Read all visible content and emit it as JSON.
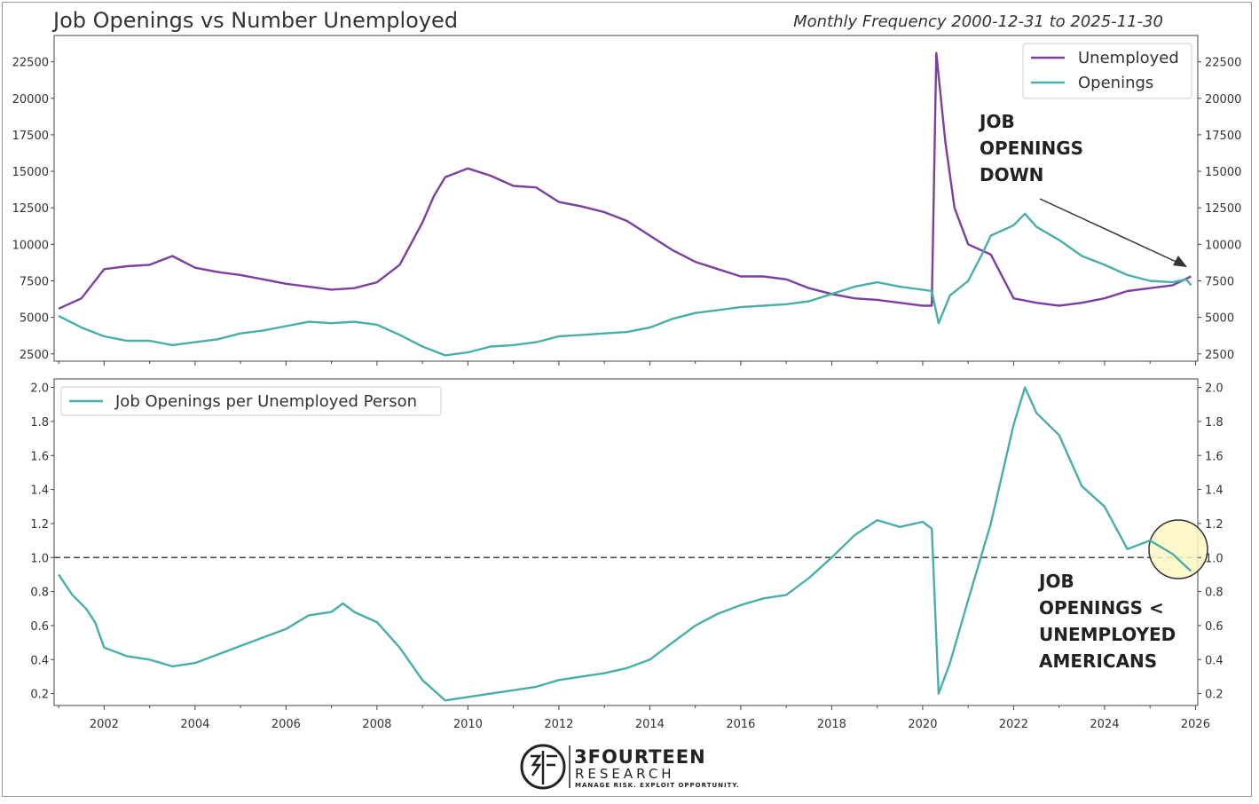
{
  "chart_title": "Job Openings vs Number Unemployed",
  "chart_subtitle": "Monthly Frequency 2000-12-31 to 2025-11-30",
  "colors": {
    "unemployed": "#7b3f9e",
    "openings": "#4aaea8",
    "ratio": "#4aaea8",
    "reference_line": "#444444",
    "highlight_fill": "#fbf7c2",
    "highlight_stroke": "#333333"
  },
  "chart_data": [
    {
      "type": "line",
      "title": "",
      "xlabel": "",
      "ylabel": "",
      "xlim": [
        2000.9,
        2026.05
      ],
      "ylim": [
        2000,
        24300
      ],
      "x_ticks": [
        "2002",
        "2004",
        "2006",
        "2008",
        "2010",
        "2012",
        "2014",
        "2016",
        "2018",
        "2020",
        "2022",
        "2024",
        "2026"
      ],
      "y_ticks": [
        "2500",
        "5000",
        "7500",
        "10000",
        "12500",
        "15000",
        "17500",
        "20000",
        "22500"
      ],
      "grid": false,
      "legend_position": "top-right",
      "series": [
        {
          "name": "Unemployed",
          "points": [
            [
              2001.0,
              5600
            ],
            [
              2001.5,
              6300
            ],
            [
              2002.0,
              8300
            ],
            [
              2002.5,
              8500
            ],
            [
              2003.0,
              8600
            ],
            [
              2003.5,
              9200
            ],
            [
              2004.0,
              8400
            ],
            [
              2004.5,
              8100
            ],
            [
              2005.0,
              7900
            ],
            [
              2005.5,
              7600
            ],
            [
              2006.0,
              7300
            ],
            [
              2006.5,
              7100
            ],
            [
              2007.0,
              6900
            ],
            [
              2007.5,
              7000
            ],
            [
              2008.0,
              7400
            ],
            [
              2008.5,
              8600
            ],
            [
              2009.0,
              11500
            ],
            [
              2009.25,
              13300
            ],
            [
              2009.5,
              14600
            ],
            [
              2010.0,
              15200
            ],
            [
              2010.5,
              14700
            ],
            [
              2011.0,
              14000
            ],
            [
              2011.5,
              13900
            ],
            [
              2012.0,
              12900
            ],
            [
              2012.5,
              12600
            ],
            [
              2013.0,
              12200
            ],
            [
              2013.5,
              11600
            ],
            [
              2014.0,
              10600
            ],
            [
              2014.5,
              9600
            ],
            [
              2015.0,
              8800
            ],
            [
              2015.5,
              8300
            ],
            [
              2016.0,
              7800
            ],
            [
              2016.5,
              7800
            ],
            [
              2017.0,
              7600
            ],
            [
              2017.5,
              7000
            ],
            [
              2018.0,
              6600
            ],
            [
              2018.5,
              6300
            ],
            [
              2019.0,
              6200
            ],
            [
              2019.5,
              6000
            ],
            [
              2020.0,
              5800
            ],
            [
              2020.2,
              5800
            ],
            [
              2020.3,
              23100
            ],
            [
              2020.5,
              17000
            ],
            [
              2020.7,
              12500
            ],
            [
              2021.0,
              10000
            ],
            [
              2021.5,
              9300
            ],
            [
              2022.0,
              6300
            ],
            [
              2022.5,
              6000
            ],
            [
              2023.0,
              5800
            ],
            [
              2023.5,
              6000
            ],
            [
              2024.0,
              6300
            ],
            [
              2024.5,
              6800
            ],
            [
              2025.0,
              7000
            ],
            [
              2025.5,
              7200
            ],
            [
              2025.9,
              7800
            ]
          ]
        },
        {
          "name": "Openings",
          "points": [
            [
              2001.0,
              5100
            ],
            [
              2001.5,
              4300
            ],
            [
              2002.0,
              3700
            ],
            [
              2002.5,
              3400
            ],
            [
              2003.0,
              3400
            ],
            [
              2003.5,
              3100
            ],
            [
              2004.0,
              3300
            ],
            [
              2004.5,
              3500
            ],
            [
              2005.0,
              3900
            ],
            [
              2005.5,
              4100
            ],
            [
              2006.0,
              4400
            ],
            [
              2006.5,
              4700
            ],
            [
              2007.0,
              4600
            ],
            [
              2007.5,
              4700
            ],
            [
              2008.0,
              4500
            ],
            [
              2008.5,
              3800
            ],
            [
              2009.0,
              3000
            ],
            [
              2009.5,
              2400
            ],
            [
              2010.0,
              2600
            ],
            [
              2010.5,
              3000
            ],
            [
              2011.0,
              3100
            ],
            [
              2011.5,
              3300
            ],
            [
              2012.0,
              3700
            ],
            [
              2012.5,
              3800
            ],
            [
              2013.0,
              3900
            ],
            [
              2013.5,
              4000
            ],
            [
              2014.0,
              4300
            ],
            [
              2014.5,
              4900
            ],
            [
              2015.0,
              5300
            ],
            [
              2015.5,
              5500
            ],
            [
              2016.0,
              5700
            ],
            [
              2016.5,
              5800
            ],
            [
              2017.0,
              5900
            ],
            [
              2017.5,
              6100
            ],
            [
              2018.0,
              6600
            ],
            [
              2018.5,
              7100
            ],
            [
              2019.0,
              7400
            ],
            [
              2019.5,
              7100
            ],
            [
              2020.0,
              6900
            ],
            [
              2020.2,
              6800
            ],
            [
              2020.35,
              4600
            ],
            [
              2020.6,
              6500
            ],
            [
              2021.0,
              7500
            ],
            [
              2021.3,
              9300
            ],
            [
              2021.5,
              10600
            ],
            [
              2022.0,
              11300
            ],
            [
              2022.25,
              12100
            ],
            [
              2022.5,
              11200
            ],
            [
              2023.0,
              10300
            ],
            [
              2023.5,
              9200
            ],
            [
              2024.0,
              8600
            ],
            [
              2024.5,
              7900
            ],
            [
              2025.0,
              7500
            ],
            [
              2025.5,
              7400
            ],
            [
              2025.8,
              7600
            ],
            [
              2025.9,
              7200
            ]
          ]
        }
      ]
    },
    {
      "type": "line",
      "title": "",
      "xlabel": "",
      "ylabel": "",
      "xlim": [
        2000.9,
        2026.05
      ],
      "ylim": [
        0.13,
        2.05
      ],
      "x_ticks": [
        "2002",
        "2004",
        "2006",
        "2008",
        "2010",
        "2012",
        "2014",
        "2016",
        "2018",
        "2020",
        "2022",
        "2024",
        "2026"
      ],
      "y_ticks": [
        "0.2",
        "0.4",
        "0.6",
        "0.8",
        "1.0",
        "1.2",
        "1.4",
        "1.6",
        "1.8",
        "2.0"
      ],
      "grid": false,
      "legend_position": "top-left",
      "reference_line": {
        "y": 1.0,
        "style": "dashed"
      },
      "series": [
        {
          "name": "Job Openings per Unemployed Person",
          "points": [
            [
              2001.0,
              0.9
            ],
            [
              2001.3,
              0.78
            ],
            [
              2001.6,
              0.7
            ],
            [
              2001.8,
              0.62
            ],
            [
              2002.0,
              0.47
            ],
            [
              2002.5,
              0.42
            ],
            [
              2003.0,
              0.4
            ],
            [
              2003.5,
              0.36
            ],
            [
              2004.0,
              0.38
            ],
            [
              2004.5,
              0.43
            ],
            [
              2005.0,
              0.48
            ],
            [
              2005.5,
              0.53
            ],
            [
              2006.0,
              0.58
            ],
            [
              2006.5,
              0.66
            ],
            [
              2007.0,
              0.68
            ],
            [
              2007.25,
              0.73
            ],
            [
              2007.5,
              0.68
            ],
            [
              2008.0,
              0.62
            ],
            [
              2008.5,
              0.47
            ],
            [
              2009.0,
              0.28
            ],
            [
              2009.5,
              0.16
            ],
            [
              2010.0,
              0.18
            ],
            [
              2010.5,
              0.2
            ],
            [
              2011.0,
              0.22
            ],
            [
              2011.5,
              0.24
            ],
            [
              2012.0,
              0.28
            ],
            [
              2012.5,
              0.3
            ],
            [
              2013.0,
              0.32
            ],
            [
              2013.5,
              0.35
            ],
            [
              2014.0,
              0.4
            ],
            [
              2014.5,
              0.5
            ],
            [
              2015.0,
              0.6
            ],
            [
              2015.5,
              0.67
            ],
            [
              2016.0,
              0.72
            ],
            [
              2016.5,
              0.76
            ],
            [
              2017.0,
              0.78
            ],
            [
              2017.5,
              0.88
            ],
            [
              2018.0,
              1.0
            ],
            [
              2018.5,
              1.13
            ],
            [
              2019.0,
              1.22
            ],
            [
              2019.5,
              1.18
            ],
            [
              2020.0,
              1.21
            ],
            [
              2020.2,
              1.17
            ],
            [
              2020.35,
              0.2
            ],
            [
              2020.6,
              0.38
            ],
            [
              2021.0,
              0.75
            ],
            [
              2021.5,
              1.2
            ],
            [
              2022.0,
              1.78
            ],
            [
              2022.25,
              2.0
            ],
            [
              2022.5,
              1.85
            ],
            [
              2023.0,
              1.72
            ],
            [
              2023.5,
              1.42
            ],
            [
              2024.0,
              1.3
            ],
            [
              2024.5,
              1.05
            ],
            [
              2025.0,
              1.1
            ],
            [
              2025.5,
              1.02
            ],
            [
              2025.9,
              0.92
            ]
          ]
        }
      ]
    }
  ],
  "annotations": {
    "top_lines": [
      "JOB",
      "OPENINGS",
      "DOWN"
    ],
    "bottom_lines": [
      "JOB",
      "OPENINGS <",
      "UNEMPLOYED",
      "AMERICANS"
    ]
  },
  "logo": {
    "main": "3FOURTEEN",
    "sub": "RESEARCH",
    "tagline": "MANAGE RISK. EXPLOIT OPPORTUNITY."
  }
}
